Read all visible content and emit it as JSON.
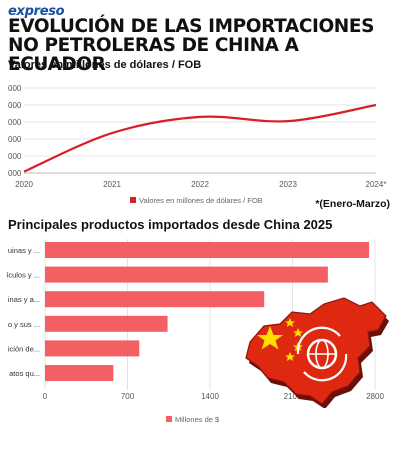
{
  "header": {
    "logo": "expreso",
    "title_line1": "EVOLUCIÓN DE LAS IMPORTACIONES",
    "title_line2": "NO PETROLERAS DE CHINA A ECUADOR",
    "subtitle": "Valores en millones de dólares / FOB",
    "note": "*(Enero-Marzo)",
    "bar_section_title": "Principales productos importados desde China 2025"
  },
  "colors": {
    "accent": "#d71f2a",
    "bar": "#f35f62",
    "flag_red": "#de2910",
    "flag_yellow": "#ffde00"
  },
  "chart_data": [
    {
      "type": "line",
      "x": [
        "2020",
        "2021",
        "2022",
        "2023",
        "2024*"
      ],
      "y_tick_labels": [
        "000",
        "000",
        "000",
        "000",
        "000",
        "000"
      ],
      "series": [
        {
          "name": "Valores en millones de dólares / FOB",
          "values": [
            8,
            235,
            330,
            305,
            400
          ]
        }
      ],
      "ylim": [
        0,
        500
      ],
      "grid": true,
      "legend": "bottom"
    },
    {
      "type": "bar",
      "orientation": "horizontal",
      "categories": [
        "uinas y ...",
        "ículos y ...",
        "inas y a...",
        "o y sus ...",
        "ición de...",
        "atos qu..."
      ],
      "values": [
        2750,
        2400,
        1860,
        1040,
        800,
        580
      ],
      "x_ticks": [
        "0",
        "700",
        "1400",
        "2100",
        "2800"
      ],
      "xlim": [
        0,
        2800
      ],
      "grid": true,
      "series_name": "Millones de $",
      "legend": "bottom"
    }
  ]
}
